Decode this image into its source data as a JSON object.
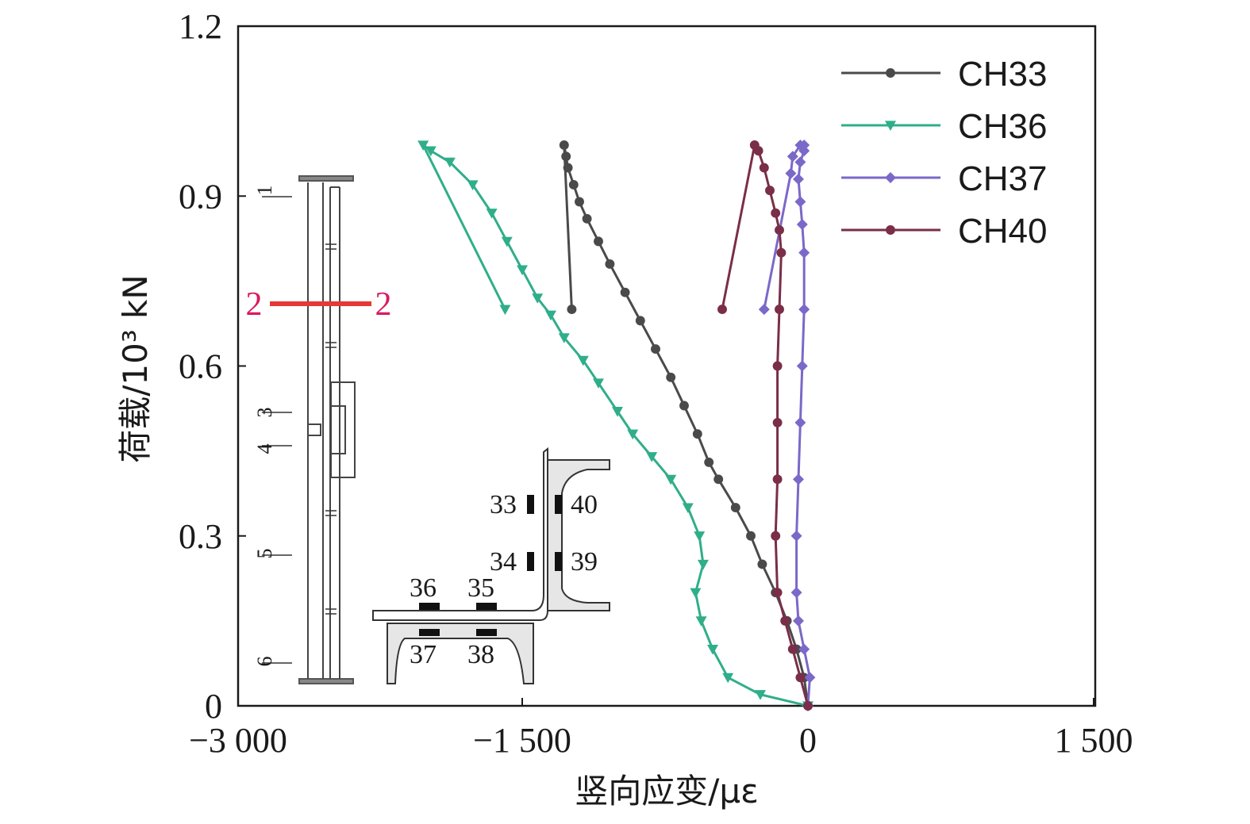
{
  "chart_data": {
    "type": "line",
    "xlabel": "竖向应变/με",
    "ylabel": "荷载/10³ kN",
    "xlim": [
      -3000,
      1500
    ],
    "ylim": [
      0,
      1.2
    ],
    "x_ticks": [
      -3000,
      -1500,
      0,
      1500
    ],
    "x_tick_labels": [
      "−3 000",
      "−1 500",
      "0",
      "1 500"
    ],
    "y_ticks": [
      0,
      0.3,
      0.6,
      0.9,
      1.2
    ],
    "y_tick_labels": [
      "0",
      "0.3",
      "0.6",
      "0.9",
      "1.2"
    ],
    "grid": false,
    "legend_position": "top-right",
    "series": [
      {
        "name": "CH33",
        "color": "#4a4a4a",
        "marker": "circle",
        "x": [
          0,
          -20,
          -60,
          -110,
          -170,
          -240,
          -300,
          -380,
          -470,
          -520,
          -580,
          -650,
          -720,
          -800,
          -880,
          -960,
          -1040,
          -1100,
          -1160,
          -1200,
          -1230,
          -1260,
          -1270,
          -1280,
          -1240
        ],
        "y": [
          0,
          0.05,
          0.1,
          0.15,
          0.2,
          0.25,
          0.3,
          0.35,
          0.4,
          0.43,
          0.48,
          0.53,
          0.58,
          0.63,
          0.68,
          0.73,
          0.78,
          0.82,
          0.86,
          0.89,
          0.92,
          0.95,
          0.97,
          0.99,
          0.7
        ]
      },
      {
        "name": "CH36",
        "color": "#2fae8a",
        "marker": "triangle-down",
        "x": [
          0,
          -250,
          -420,
          -500,
          -560,
          -590,
          -550,
          -570,
          -630,
          -720,
          -820,
          -920,
          -1000,
          -1100,
          -1180,
          -1280,
          -1350,
          -1420,
          -1500,
          -1580,
          -1660,
          -1760,
          -1880,
          -1980,
          -2020,
          -1590
        ],
        "y": [
          0,
          0.02,
          0.05,
          0.1,
          0.15,
          0.2,
          0.25,
          0.3,
          0.35,
          0.4,
          0.44,
          0.48,
          0.52,
          0.57,
          0.61,
          0.65,
          0.69,
          0.72,
          0.77,
          0.82,
          0.87,
          0.92,
          0.96,
          0.98,
          0.99,
          0.7
        ]
      },
      {
        "name": "CH37",
        "color": "#7b68c8",
        "marker": "diamond",
        "x": [
          0,
          10,
          -20,
          -50,
          -60,
          -60,
          -50,
          -40,
          -30,
          -20,
          -20,
          -30,
          -40,
          -50,
          -40,
          -20,
          -20,
          -40,
          -80,
          -90,
          -230
        ],
        "y": [
          0,
          0.05,
          0.1,
          0.15,
          0.2,
          0.3,
          0.4,
          0.5,
          0.6,
          0.7,
          0.8,
          0.85,
          0.89,
          0.93,
          0.96,
          0.98,
          0.99,
          0.99,
          0.97,
          0.94,
          0.7
        ]
      },
      {
        "name": "CH40",
        "color": "#7a2e48",
        "marker": "circle",
        "x": [
          0,
          -40,
          -80,
          -120,
          -160,
          -170,
          -160,
          -160,
          -160,
          -150,
          -140,
          -150,
          -170,
          -200,
          -230,
          -260,
          -280,
          -450
        ],
        "y": [
          0,
          0.05,
          0.1,
          0.15,
          0.2,
          0.3,
          0.4,
          0.5,
          0.6,
          0.7,
          0.8,
          0.84,
          0.87,
          0.91,
          0.95,
          0.98,
          0.99,
          0.7
        ]
      }
    ]
  },
  "inset": {
    "section_label_left": "2",
    "section_label_right": "2",
    "elevation_labels": [
      "1",
      "3",
      "4",
      "5",
      "6"
    ],
    "gauge_labels": [
      "33",
      "40",
      "34",
      "39",
      "36",
      "35",
      "37",
      "38"
    ]
  }
}
